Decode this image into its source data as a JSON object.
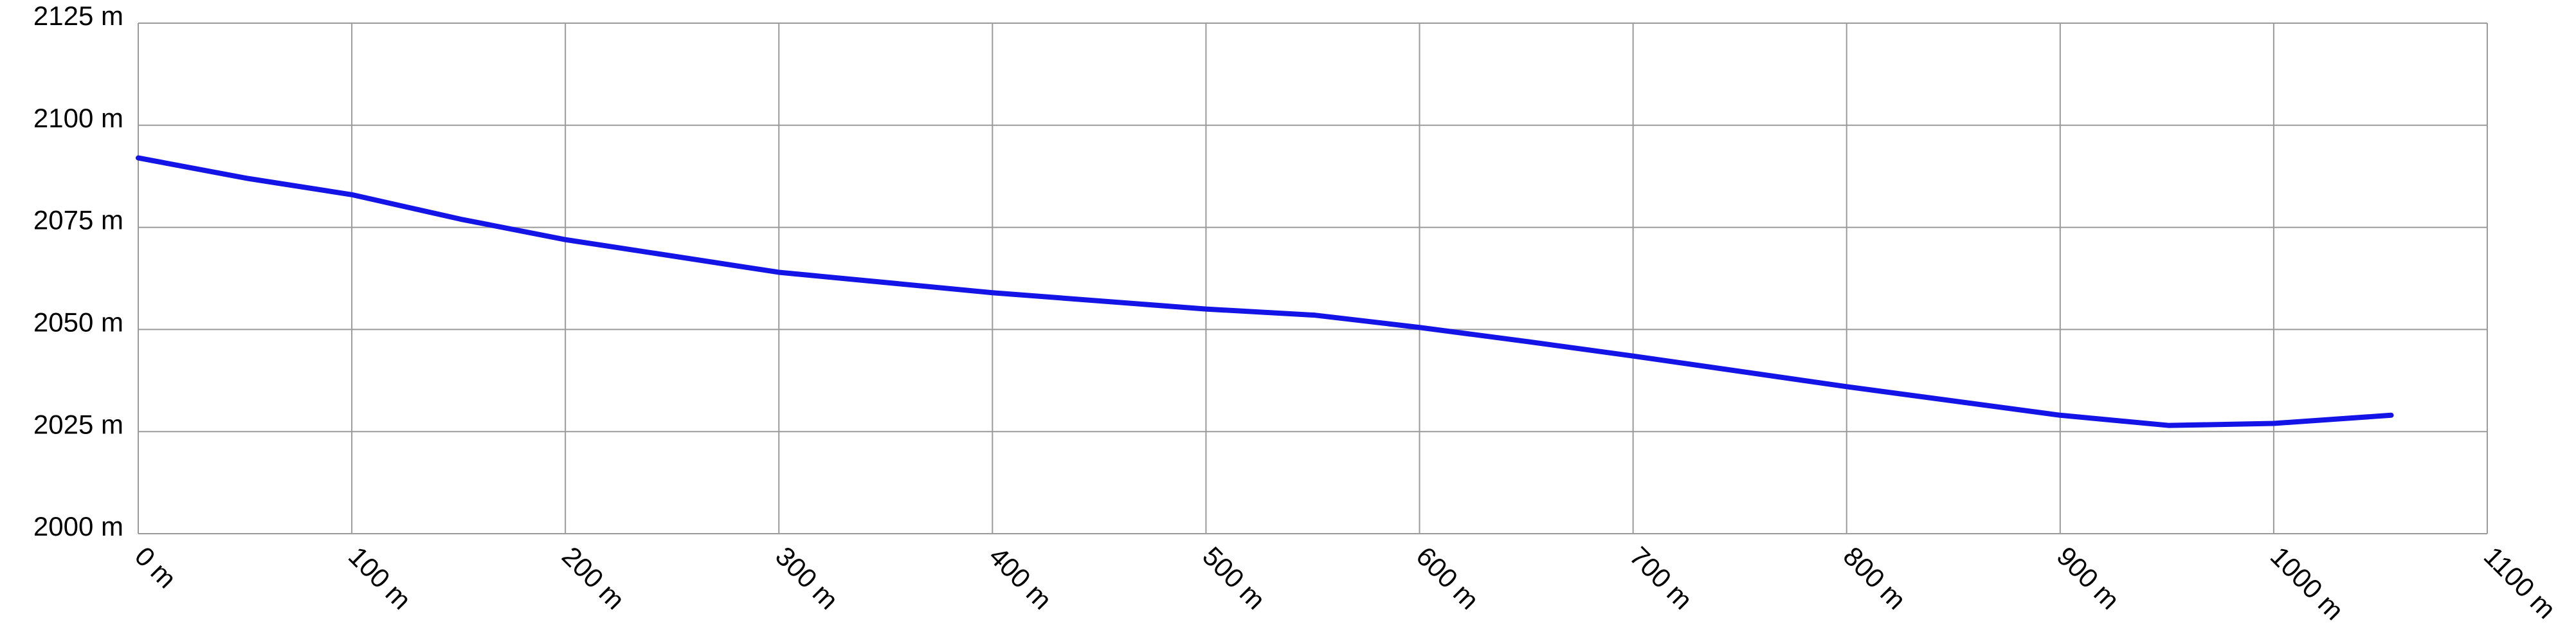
{
  "chart_data": {
    "type": "line",
    "x": [
      0,
      51,
      100,
      151,
      200,
      300,
      400,
      500,
      551,
      600,
      651,
      700,
      800,
      900,
      951,
      1000,
      1055
    ],
    "series": [
      {
        "color": "#1414e6",
        "values": [
          2092,
          2087,
          2083,
          2077,
          2072,
          2064,
          2059,
          2055,
          2053.5,
          2050.5,
          2047,
          2043.5,
          2036,
          2029,
          2026.5,
          2027,
          2029
        ]
      }
    ],
    "xlim": [
      0,
      1100
    ],
    "xticks": [
      {
        "value": 0,
        "label": "0 m"
      },
      {
        "value": 100,
        "label": "100 m"
      },
      {
        "value": 200,
        "label": "200 m"
      },
      {
        "value": 300,
        "label": "300 m"
      },
      {
        "value": 400,
        "label": "400 m"
      },
      {
        "value": 500,
        "label": "500 m"
      },
      {
        "value": 600,
        "label": "600 m"
      },
      {
        "value": 700,
        "label": "700 m"
      },
      {
        "value": 800,
        "label": "800 m"
      },
      {
        "value": 900,
        "label": "900 m"
      },
      {
        "value": 1000,
        "label": "1000 m"
      },
      {
        "value": 1100,
        "label": "1100 m"
      }
    ],
    "ylim": [
      2000,
      2125
    ],
    "yticks": [
      {
        "value": 2000,
        "label": "2000 m"
      },
      {
        "value": 2025,
        "label": "2025 m"
      },
      {
        "value": 2050,
        "label": "2050 m"
      },
      {
        "value": 2075,
        "label": "2075 m"
      },
      {
        "value": 2100,
        "label": "2100 m"
      },
      {
        "value": 2125,
        "label": "2125 m"
      }
    ],
    "grid": true
  }
}
